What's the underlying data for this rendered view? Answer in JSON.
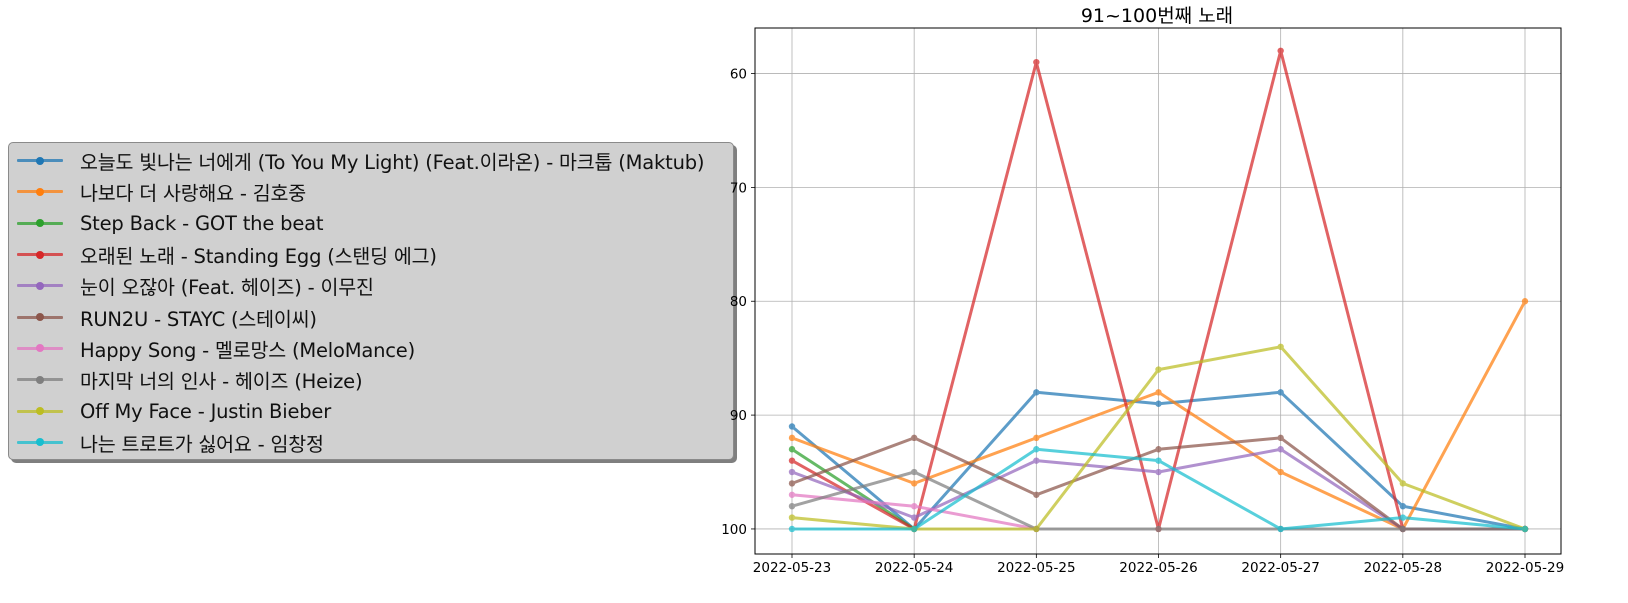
{
  "chart_data": {
    "type": "line",
    "title": "91~100번째 노래",
    "xlabel": "",
    "ylabel": "",
    "x": [
      "2022-05-23",
      "2022-05-24",
      "2022-05-25",
      "2022-05-26",
      "2022-05-27",
      "2022-05-28",
      "2022-05-29"
    ],
    "y_ticks": [
      60,
      70,
      80,
      90,
      100
    ],
    "ylim": [
      56,
      102.2
    ],
    "y_inverted": true,
    "grid": true,
    "legend_placement": "left, outside plot",
    "series": [
      {
        "name": "오늘도 빛나는 너에게 (To You My Light) (Feat.이라온) - 마크툽 (Maktub)",
        "color": "#1f77b4",
        "values": [
          91,
          100,
          88,
          89,
          88,
          98,
          100
        ]
      },
      {
        "name": "나보다 더 사랑해요 - 김호중",
        "color": "#ff7f0e",
        "values": [
          92,
          96,
          92,
          88,
          95,
          100,
          80
        ]
      },
      {
        "name": "Step Back - GOT the beat",
        "color": "#2ca02c",
        "values": [
          93,
          100,
          null,
          null,
          null,
          null,
          null
        ]
      },
      {
        "name": "오래된 노래 - Standing Egg (스탠딩 에그)",
        "color": "#d62728",
        "values": [
          94,
          100,
          59,
          100,
          58,
          100,
          100
        ]
      },
      {
        "name": "눈이 오잖아 (Feat. 헤이즈) - 이무진",
        "color": "#9467bd",
        "values": [
          95,
          99,
          94,
          95,
          93,
          100,
          100
        ]
      },
      {
        "name": "RUN2U - STAYC (스테이씨)",
        "color": "#8c564b",
        "values": [
          96,
          92,
          97,
          93,
          92,
          100,
          100
        ]
      },
      {
        "name": "Happy Song - 멜로망스 (MeloMance)",
        "color": "#e377c2",
        "values": [
          97,
          98,
          100,
          null,
          null,
          null,
          null
        ]
      },
      {
        "name": "마지막 너의 인사 - 헤이즈 (Heize)",
        "color": "#7f7f7f",
        "values": [
          98,
          95,
          100,
          100,
          100,
          100,
          100
        ]
      },
      {
        "name": "Off My Face - Justin Bieber",
        "color": "#bcbd22",
        "values": [
          99,
          100,
          100,
          86,
          84,
          96,
          100
        ]
      },
      {
        "name": "나는 트로트가 싫어요 - 임창정",
        "color": "#17becf",
        "values": [
          100,
          100,
          93,
          94,
          100,
          99,
          100
        ]
      }
    ]
  }
}
